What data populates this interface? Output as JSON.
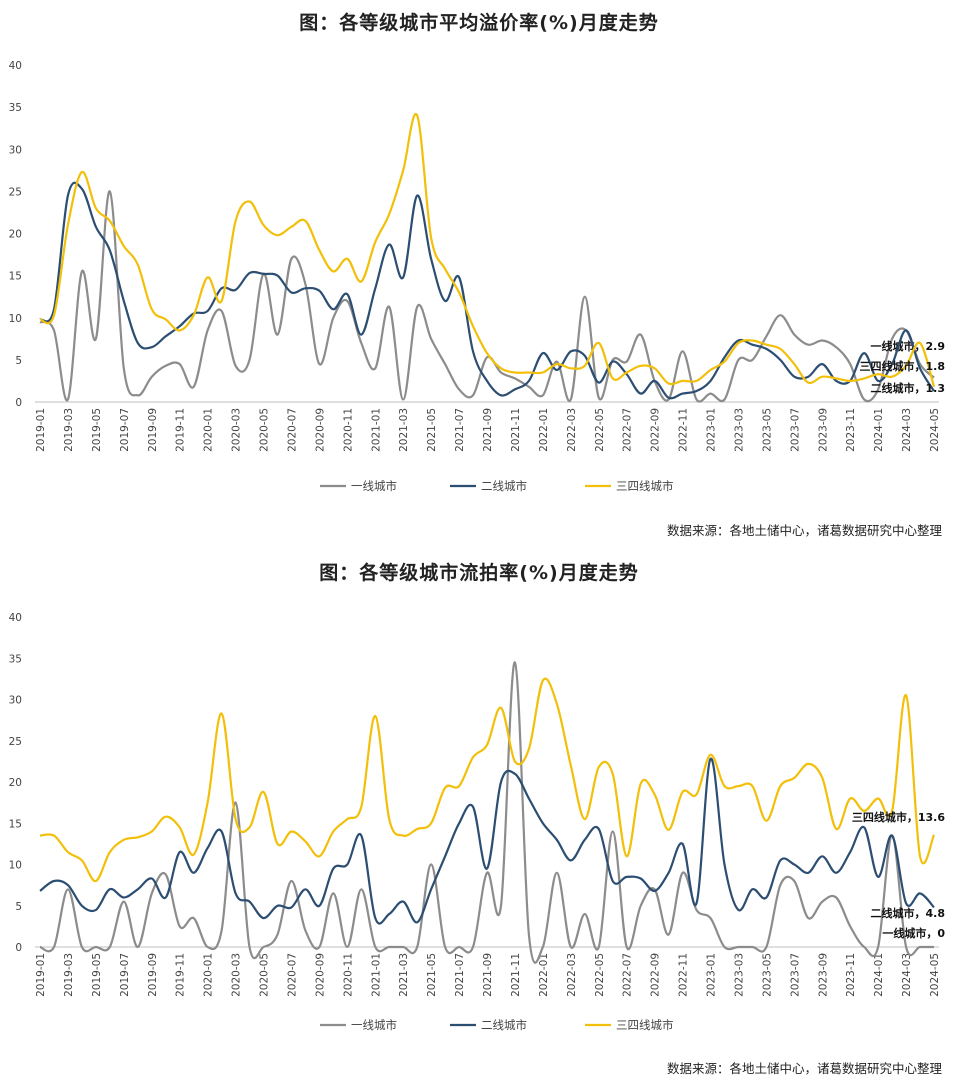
{
  "colors": {
    "tier1": "#8c8c8c",
    "tier2": "#2b4e72",
    "tier3": "#f2c00a",
    "axis": "#bfbfbf"
  },
  "months": [
    "2019-01",
    "2019-02",
    "2019-03",
    "2019-04",
    "2019-05",
    "2019-06",
    "2019-07",
    "2019-08",
    "2019-09",
    "2019-10",
    "2019-11",
    "2019-12",
    "2020-01",
    "2020-02",
    "2020-03",
    "2020-04",
    "2020-05",
    "2020-06",
    "2020-07",
    "2020-08",
    "2020-09",
    "2020-10",
    "2020-11",
    "2020-12",
    "2021-01",
    "2021-02",
    "2021-03",
    "2021-04",
    "2021-05",
    "2021-06",
    "2021-07",
    "2021-08",
    "2021-09",
    "2021-10",
    "2021-11",
    "2021-12",
    "2022-01",
    "2022-02",
    "2022-03",
    "2022-04",
    "2022-05",
    "2022-06",
    "2022-07",
    "2022-08",
    "2022-09",
    "2022-10",
    "2022-11",
    "2022-12",
    "2023-01",
    "2023-02",
    "2023-03",
    "2023-04",
    "2023-05",
    "2023-06",
    "2023-07",
    "2023-08",
    "2023-09",
    "2023-10",
    "2023-11",
    "2023-12",
    "2024-01",
    "2024-02",
    "2024-03",
    "2024-04",
    "2024-05"
  ],
  "tick_labels": [
    "2019-01",
    "2019-03",
    "2019-05",
    "2019-07",
    "2019-09",
    "2019-11",
    "2020-01",
    "2020-03",
    "2020-05",
    "2020-07",
    "2020-09",
    "2020-11",
    "2021-01",
    "2021-03",
    "2021-05",
    "2021-07",
    "2021-09",
    "2021-11",
    "2022-01",
    "2022-03",
    "2022-05",
    "2022-07",
    "2022-09",
    "2022-11",
    "2023-01",
    "2023-03",
    "2023-05",
    "2023-07",
    "2023-09",
    "2023-11",
    "2024-01",
    "2024-03",
    "2024-05"
  ],
  "chart_data": [
    {
      "type": "line",
      "title": "图：各等级城市平均溢价率(%)月度走势",
      "source": "数据来源：各地土储中心，诸葛数据研究中心整理",
      "ylim": [
        0,
        40
      ],
      "yticks": [
        "0",
        "5",
        "10",
        "15",
        "20",
        "25",
        "30",
        "35",
        "40"
      ],
      "grid": false,
      "legend_position": "bottom",
      "series": [
        {
          "name": "一线城市",
          "end_label": "一线城市，2.9",
          "values": [
            9.5,
            8.5,
            0.3,
            15.5,
            7.5,
            25,
            4,
            0.8,
            3,
            4.3,
            4.5,
            1.8,
            8.5,
            10.8,
            4.3,
            5,
            15.2,
            8,
            17,
            14,
            4.5,
            10,
            12,
            7,
            4,
            11.3,
            0.3,
            11.3,
            7.5,
            4.5,
            1.5,
            0.8,
            5.3,
            3.5,
            2.8,
            1.8,
            0.8,
            4.8,
            0.3,
            12.5,
            0.5,
            5,
            4.8,
            8,
            2.5,
            0.3,
            6,
            0.3,
            1,
            0.3,
            5,
            5,
            7.8,
            10.3,
            8,
            6.8,
            7.3,
            6.5,
            4.5,
            0.3,
            1.5,
            7.5,
            8.5,
            4.5,
            2.9
          ]
        },
        {
          "name": "二线城市",
          "end_label": "二线城市，1.3",
          "values": [
            9.8,
            11,
            24.5,
            25.3,
            20.8,
            18,
            12,
            7,
            6.5,
            7.8,
            9,
            10.5,
            10.8,
            13.5,
            13.3,
            15.3,
            15.2,
            15,
            13,
            13.5,
            13.2,
            11,
            12.8,
            8,
            13.5,
            18.7,
            14.8,
            24.5,
            17,
            12,
            14.8,
            6,
            2.5,
            0.8,
            1.5,
            2.5,
            5.8,
            3.8,
            6,
            5.5,
            2.3,
            4.8,
            3.3,
            1,
            2.5,
            0.5,
            1,
            1.3,
            2.5,
            5.3,
            7.3,
            6.8,
            6.3,
            5,
            3,
            3,
            4.5,
            2.5,
            2.5,
            5.8,
            2.5,
            4.5,
            8.5,
            4,
            1.3
          ]
        },
        {
          "name": "三四线城市",
          "end_label": "三四线城市，1.8",
          "values": [
            9.8,
            10.3,
            21,
            27.3,
            23,
            21.5,
            18.5,
            16.3,
            11,
            9.8,
            8.5,
            10.3,
            14.8,
            12,
            21.5,
            23.8,
            21,
            19.8,
            20.8,
            21.5,
            18,
            15.5,
            17,
            14.3,
            19,
            22.3,
            27.5,
            34,
            19.5,
            15.8,
            13,
            9,
            5.8,
            4,
            3.5,
            3.5,
            3.5,
            4.5,
            4,
            4.3,
            7,
            2.8,
            3.5,
            4.3,
            4,
            2.2,
            2.5,
            2.5,
            3.8,
            4.8,
            7,
            7.3,
            6.8,
            6.3,
            4.5,
            2.3,
            3,
            2.8,
            2.5,
            2.8,
            3.3,
            3,
            4.3,
            7,
            1.8
          ]
        }
      ]
    },
    {
      "type": "line",
      "title": "图：各等级城市流拍率(%)月度走势",
      "source": "数据来源：各地土储中心，诸葛数据研究中心整理",
      "ylim": [
        0,
        40
      ],
      "yticks": [
        "0",
        "5",
        "10",
        "15",
        "20",
        "25",
        "30",
        "35",
        "40"
      ],
      "grid": false,
      "legend_position": "bottom",
      "series": [
        {
          "name": "一线城市",
          "end_label": "一线城市，0",
          "values": [
            0,
            0,
            7,
            0,
            0,
            0,
            5.5,
            0,
            6.5,
            8.8,
            2.5,
            3.5,
            0,
            2,
            17.5,
            0,
            0,
            1.5,
            8,
            2,
            0,
            6.5,
            0,
            7,
            0,
            0,
            0,
            0,
            10,
            0,
            0,
            0,
            9,
            5,
            34.5,
            1.5,
            0,
            9,
            0,
            4,
            0,
            14,
            0,
            5,
            7,
            1.5,
            9,
            4.5,
            3.5,
            0,
            0,
            0,
            0,
            7.5,
            8,
            3.5,
            5.5,
            6,
            2.5,
            0,
            0,
            13.5,
            0,
            0,
            0
          ]
        },
        {
          "name": "二线城市",
          "end_label": "二线城市，4.8",
          "values": [
            6.8,
            8,
            7.5,
            5,
            4.5,
            7,
            6,
            7,
            8.3,
            6,
            11.5,
            9,
            12,
            14,
            6.5,
            5.5,
            3.5,
            5,
            4.8,
            7,
            5,
            9.5,
            10,
            13.5,
            3.5,
            4,
            5.5,
            3,
            7,
            11,
            15,
            17,
            9.5,
            20,
            21,
            18,
            15,
            13,
            10.5,
            13,
            14.3,
            8,
            8.5,
            8.3,
            6.8,
            9,
            12.5,
            5.3,
            22.8,
            10,
            4.5,
            7,
            6,
            10.5,
            10,
            9,
            11,
            9,
            11.5,
            14.5,
            8.5,
            13.5,
            5.3,
            6.5,
            4.8
          ]
        },
        {
          "name": "三四线城市",
          "end_label": "三四线城市，13.6",
          "values": [
            13.5,
            13.5,
            11.5,
            10.5,
            8,
            11.5,
            13,
            13.3,
            14,
            15.8,
            14.5,
            11.2,
            17.5,
            28.3,
            15.5,
            14.5,
            18.8,
            12.5,
            14,
            12.8,
            11,
            14,
            15.5,
            17,
            28,
            15.5,
            13.5,
            14.3,
            15,
            19.3,
            19.5,
            23,
            24.5,
            29,
            22.5,
            24,
            32.3,
            29.5,
            22,
            15.5,
            21.8,
            21,
            11,
            19.8,
            18.5,
            14.2,
            18.8,
            18.5,
            23.3,
            19.5,
            19.5,
            19.5,
            15.3,
            19.5,
            20.5,
            22.2,
            20.5,
            14.3,
            18,
            16.5,
            18,
            16.5,
            30.5,
            11,
            13.6
          ]
        }
      ]
    }
  ]
}
